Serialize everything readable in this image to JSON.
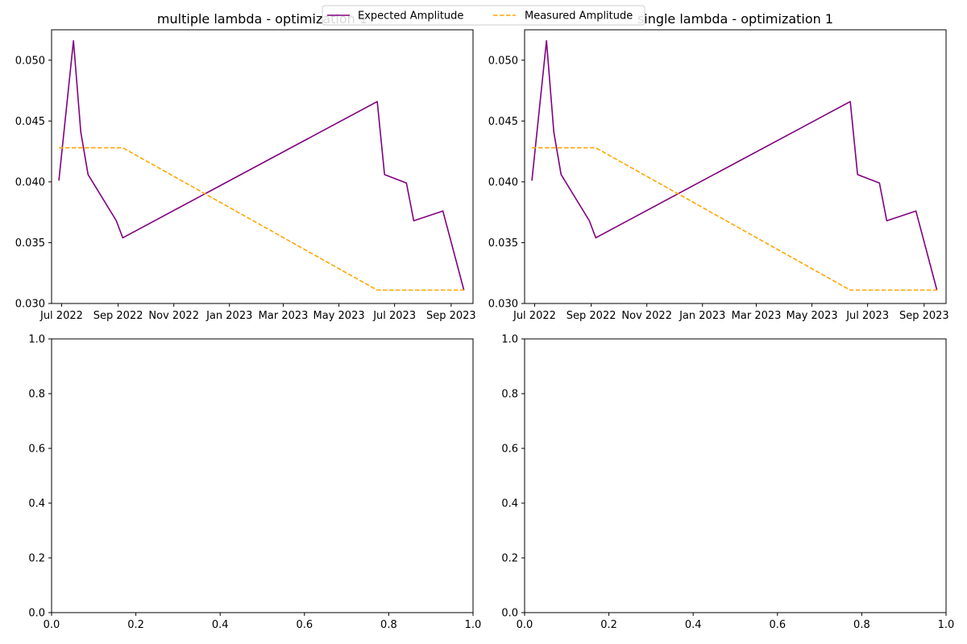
{
  "figure": {
    "legend_placement": "top-center"
  },
  "legend": {
    "entries": [
      {
        "label": "Expected Amplitude",
        "color": "#800080",
        "style": "solid"
      },
      {
        "label": "Measured Amplitude",
        "color": "#ffa500",
        "style": "dashed"
      }
    ]
  },
  "chart_data": [
    {
      "type": "line",
      "title": "multiple lambda - optimization 1",
      "xlabel": "",
      "ylabel": "",
      "grid": false,
      "xlim": [
        "2022-06-20",
        "2023-09-25"
      ],
      "ylim": [
        0.03,
        0.0525
      ],
      "x_tick_labels": [
        "Jul 2022",
        "Sep 2022",
        "Nov 2022",
        "Jan 2023",
        "Mar 2023",
        "May 2023",
        "Jul 2023",
        "Sep 2023"
      ],
      "x_tick_dates": [
        "2022-07-01",
        "2022-09-01",
        "2022-11-01",
        "2023-01-01",
        "2023-03-01",
        "2023-05-01",
        "2023-07-01",
        "2023-09-01"
      ],
      "y_tick_labels": [
        "0.030",
        "0.035",
        "0.040",
        "0.045",
        "0.050"
      ],
      "y_ticks": [
        0.03,
        0.035,
        0.04,
        0.045,
        0.05
      ],
      "series": [
        {
          "name": "Expected Amplitude",
          "color": "#800080",
          "style": "solid",
          "x": [
            "2022-06-28",
            "2022-07-14",
            "2022-07-22",
            "2022-07-30",
            "2022-08-30",
            "2022-09-06",
            "2023-06-12",
            "2023-06-20",
            "2023-07-14",
            "2023-07-22",
            "2023-08-23",
            "2023-09-15"
          ],
          "y": [
            0.0401,
            0.0516,
            0.0441,
            0.0406,
            0.0368,
            0.0354,
            0.0466,
            0.0406,
            0.0399,
            0.0368,
            0.0376,
            0.0311
          ]
        },
        {
          "name": "Measured Amplitude",
          "color": "#ffa500",
          "style": "dashed",
          "x": [
            "2022-06-28",
            "2022-09-06",
            "2023-06-12",
            "2023-09-15"
          ],
          "y": [
            0.0428,
            0.0428,
            0.0311,
            0.0311
          ]
        }
      ]
    },
    {
      "type": "line",
      "title": "single lambda - optimization 1",
      "xlabel": "",
      "ylabel": "",
      "grid": false,
      "xlim": [
        "2022-06-20",
        "2023-09-25"
      ],
      "ylim": [
        0.03,
        0.0525
      ],
      "x_tick_labels": [
        "Jul 2022",
        "Sep 2022",
        "Nov 2022",
        "Jan 2023",
        "Mar 2023",
        "May 2023",
        "Jul 2023",
        "Sep 2023"
      ],
      "x_tick_dates": [
        "2022-07-01",
        "2022-09-01",
        "2022-11-01",
        "2023-01-01",
        "2023-03-01",
        "2023-05-01",
        "2023-07-01",
        "2023-09-01"
      ],
      "y_tick_labels": [
        "0.030",
        "0.035",
        "0.040",
        "0.045",
        "0.050"
      ],
      "y_ticks": [
        0.03,
        0.035,
        0.04,
        0.045,
        0.05
      ],
      "series": [
        {
          "name": "Expected Amplitude",
          "color": "#800080",
          "style": "solid",
          "x": [
            "2022-06-28",
            "2022-07-14",
            "2022-07-22",
            "2022-07-30",
            "2022-08-30",
            "2022-09-06",
            "2023-06-12",
            "2023-06-20",
            "2023-07-14",
            "2023-07-22",
            "2023-08-23",
            "2023-09-15"
          ],
          "y": [
            0.0401,
            0.0516,
            0.0441,
            0.0406,
            0.0368,
            0.0354,
            0.0466,
            0.0406,
            0.0399,
            0.0368,
            0.0376,
            0.0311
          ]
        },
        {
          "name": "Measured Amplitude",
          "color": "#ffa500",
          "style": "dashed",
          "x": [
            "2022-06-28",
            "2022-09-06",
            "2023-06-12",
            "2023-09-15"
          ],
          "y": [
            0.0428,
            0.0428,
            0.0311,
            0.0311
          ]
        }
      ]
    },
    {
      "type": "line",
      "title": "",
      "xlabel": "",
      "ylabel": "",
      "grid": false,
      "xlim": [
        0.0,
        1.0
      ],
      "ylim": [
        0.0,
        1.0
      ],
      "x_ticks": [
        0.0,
        0.2,
        0.4,
        0.6,
        0.8,
        1.0
      ],
      "x_tick_labels": [
        "0.0",
        "0.2",
        "0.4",
        "0.6",
        "0.8",
        "1.0"
      ],
      "y_ticks": [
        0.0,
        0.2,
        0.4,
        0.6,
        0.8,
        1.0
      ],
      "y_tick_labels": [
        "0.0",
        "0.2",
        "0.4",
        "0.6",
        "0.8",
        "1.0"
      ],
      "series": []
    },
    {
      "type": "line",
      "title": "",
      "xlabel": "",
      "ylabel": "",
      "grid": false,
      "xlim": [
        0.0,
        1.0
      ],
      "ylim": [
        0.0,
        1.0
      ],
      "x_ticks": [
        0.0,
        0.2,
        0.4,
        0.6,
        0.8,
        1.0
      ],
      "x_tick_labels": [
        "0.0",
        "0.2",
        "0.4",
        "0.6",
        "0.8",
        "1.0"
      ],
      "y_ticks": [
        0.0,
        0.2,
        0.4,
        0.6,
        0.8,
        1.0
      ],
      "y_tick_labels": [
        "0.0",
        "0.2",
        "0.4",
        "0.6",
        "0.8",
        "1.0"
      ],
      "series": []
    }
  ]
}
